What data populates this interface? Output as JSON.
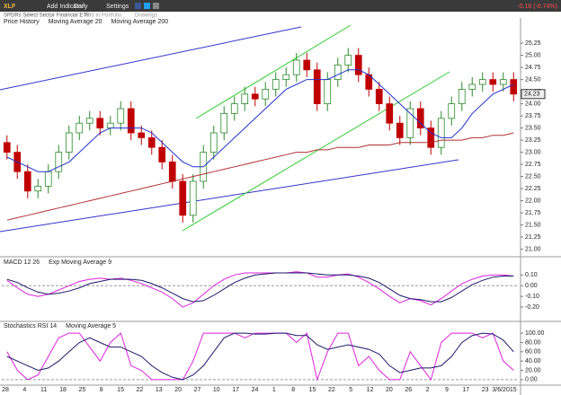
{
  "toolbar": {
    "symbol": "XLF",
    "add_indicator": "Add Indicator",
    "period": "Daily",
    "settings": "Settings",
    "change": "-0.18 (-0.74%)",
    "subtitle": "SPDRs Select Sector Financial ETF",
    "add_portfolio": "Add to Portfolio",
    "drawings": "Drawings"
  },
  "x_labels": [
    "28",
    "4",
    "11",
    "18",
    "25",
    "8",
    "15",
    "22",
    "13",
    "20",
    "27",
    "10",
    "17",
    "24",
    "1",
    "8",
    "15",
    "22",
    "5",
    "12",
    "20",
    "26",
    "2",
    "9",
    "17",
    "23",
    "3/6/2015"
  ],
  "chart_data": [
    {
      "type": "candlestick",
      "name": "Price History",
      "up_color": "#2a8a2a",
      "down_color": "#c00000",
      "last_label": "24.23",
      "open": [
        23.2,
        23.0,
        22.6,
        22.2,
        22.3,
        22.6,
        23.0,
        23.4,
        23.6,
        23.7,
        23.5,
        23.6,
        23.9,
        23.4,
        23.3,
        23.1,
        22.8,
        22.4,
        21.7,
        22.4,
        23.0,
        23.4,
        23.8,
        24.0,
        24.2,
        24.1,
        24.3,
        24.5,
        24.6,
        24.9,
        24.7,
        24.0,
        24.5,
        24.8,
        25.0,
        24.6,
        24.3,
        24.0,
        23.6,
        23.3,
        23.9,
        23.5,
        23.1,
        23.7,
        24.0,
        24.3,
        24.4,
        24.5,
        24.4,
        24.5
      ],
      "high": [
        23.35,
        23.15,
        22.75,
        22.45,
        22.75,
        23.15,
        23.55,
        23.75,
        23.85,
        23.85,
        23.75,
        24.05,
        24.05,
        23.55,
        23.45,
        23.25,
        22.95,
        22.55,
        22.55,
        23.15,
        23.55,
        23.95,
        24.15,
        24.35,
        24.35,
        24.45,
        24.65,
        24.75,
        25.05,
        25.05,
        24.85,
        24.65,
        24.95,
        25.15,
        25.15,
        24.75,
        24.45,
        24.15,
        23.75,
        24.05,
        24.05,
        23.65,
        23.85,
        24.15,
        24.45,
        24.55,
        24.65,
        24.65,
        24.65,
        24.65
      ],
      "low": [
        22.85,
        22.45,
        22.05,
        22.05,
        22.15,
        22.45,
        22.85,
        23.25,
        23.45,
        23.35,
        23.35,
        23.45,
        23.25,
        23.15,
        22.95,
        22.65,
        22.25,
        21.55,
        21.55,
        22.25,
        22.85,
        23.25,
        23.65,
        23.85,
        23.95,
        23.95,
        24.15,
        24.35,
        24.45,
        24.55,
        23.85,
        23.85,
        24.35,
        24.65,
        24.45,
        24.15,
        23.85,
        23.45,
        23.15,
        23.15,
        23.35,
        22.95,
        22.95,
        23.55,
        23.85,
        24.15,
        24.25,
        24.25,
        24.25,
        24.05
      ],
      "close": [
        23.0,
        22.6,
        22.2,
        22.3,
        22.6,
        23.0,
        23.4,
        23.6,
        23.7,
        23.5,
        23.6,
        23.9,
        23.4,
        23.3,
        23.1,
        22.8,
        22.4,
        21.7,
        22.4,
        23.0,
        23.4,
        23.8,
        24.0,
        24.2,
        24.1,
        24.3,
        24.5,
        24.6,
        24.9,
        24.7,
        24.0,
        24.5,
        24.8,
        25.0,
        24.6,
        24.3,
        24.0,
        23.6,
        23.3,
        23.9,
        23.5,
        23.1,
        23.7,
        24.0,
        24.3,
        24.4,
        24.5,
        24.4,
        24.5,
        24.2
      ],
      "series": [
        {
          "name": "Moving Average 20",
          "color": "#2233cc",
          "values": [
            22.9,
            22.8,
            22.7,
            22.6,
            22.6,
            22.7,
            22.8,
            23.0,
            23.2,
            23.4,
            23.5,
            23.5,
            23.5,
            23.5,
            23.4,
            23.2,
            23.0,
            22.8,
            22.7,
            22.7,
            22.9,
            23.1,
            23.3,
            23.5,
            23.7,
            23.9,
            24.1,
            24.3,
            24.4,
            24.5,
            24.5,
            24.5,
            24.6,
            24.7,
            24.7,
            24.6,
            24.4,
            24.2,
            24.0,
            23.8,
            23.6,
            23.4,
            23.3,
            23.3,
            23.5,
            23.8,
            24.0,
            24.2,
            24.3,
            24.4
          ]
        },
        {
          "name": "Moving Average 200",
          "color": "#b03030",
          "values": [
            21.6,
            21.65,
            21.7,
            21.75,
            21.8,
            21.85,
            21.9,
            21.95,
            22.0,
            22.05,
            22.1,
            22.15,
            22.2,
            22.25,
            22.3,
            22.35,
            22.4,
            22.45,
            22.5,
            22.55,
            22.6,
            22.65,
            22.7,
            22.75,
            22.8,
            22.85,
            22.9,
            22.95,
            23.0,
            23.0,
            23.05,
            23.05,
            23.1,
            23.1,
            23.1,
            23.15,
            23.15,
            23.15,
            23.2,
            23.2,
            23.2,
            23.2,
            23.25,
            23.25,
            23.25,
            23.3,
            23.3,
            23.35,
            23.35,
            23.4
          ]
        }
      ],
      "ylim": [
        20.9,
        25.4
      ],
      "yticks": [
        {
          "value": 21.0,
          "label": "21.00"
        },
        {
          "value": 21.25,
          "label": "21.25"
        },
        {
          "value": 21.5,
          "label": "21.50"
        },
        {
          "value": 21.75,
          "label": "21.75"
        },
        {
          "value": 22.0,
          "label": "22.00"
        },
        {
          "value": 22.25,
          "label": "22.25"
        },
        {
          "value": 22.5,
          "label": "22.50"
        },
        {
          "value": 22.75,
          "label": "22.75"
        },
        {
          "value": 23.0,
          "label": "23.00"
        },
        {
          "value": 23.25,
          "label": "23.25"
        },
        {
          "value": 23.5,
          "label": "23.50"
        },
        {
          "value": 23.75,
          "label": "23.75"
        },
        {
          "value": 24.0,
          "label": "24.00"
        },
        {
          "value": 24.25,
          "label": "24.25"
        },
        {
          "value": 24.5,
          "label": "24.50"
        },
        {
          "value": 24.75,
          "label": "24.75"
        },
        {
          "value": 25.0,
          "label": "25.00"
        },
        {
          "value": 25.25,
          "label": "25.25"
        }
      ]
    },
    {
      "type": "line",
      "series": [
        {
          "name": "MACD 12 26",
          "color": "#dd22dd",
          "values": [
            0.05,
            -0.02,
            -0.08,
            -0.1,
            -0.08,
            -0.04,
            0.0,
            0.04,
            0.06,
            0.07,
            0.06,
            0.07,
            0.05,
            0.02,
            -0.02,
            -0.06,
            -0.12,
            -0.2,
            -0.16,
            -0.08,
            0.0,
            0.06,
            0.1,
            0.12,
            0.12,
            0.12,
            0.12,
            0.12,
            0.13,
            0.12,
            0.08,
            0.08,
            0.1,
            0.11,
            0.08,
            0.03,
            -0.03,
            -0.1,
            -0.16,
            -0.12,
            -0.14,
            -0.18,
            -0.12,
            -0.05,
            0.02,
            0.06,
            0.09,
            0.1,
            0.1,
            0.09
          ]
        },
        {
          "name": "Exp Moving Average 9",
          "color": "#1a1a6a",
          "values": [
            0.06,
            0.03,
            -0.02,
            -0.06,
            -0.08,
            -0.07,
            -0.05,
            -0.02,
            0.02,
            0.04,
            0.06,
            0.06,
            0.06,
            0.05,
            0.02,
            -0.02,
            -0.07,
            -0.12,
            -0.15,
            -0.14,
            -0.09,
            -0.03,
            0.03,
            0.07,
            0.1,
            0.11,
            0.12,
            0.12,
            0.12,
            0.12,
            0.11,
            0.1,
            0.1,
            0.1,
            0.09,
            0.07,
            0.03,
            -0.03,
            -0.09,
            -0.12,
            -0.13,
            -0.15,
            -0.15,
            -0.11,
            -0.05,
            0.01,
            0.05,
            0.08,
            0.09,
            0.09
          ]
        }
      ],
      "ylim": [
        -0.3,
        0.17
      ],
      "yticks": [
        {
          "value": 0.1,
          "label": "0.10"
        },
        {
          "value": 0,
          "label": "0.00"
        },
        {
          "value": -0.1,
          "label": "-0.10"
        },
        {
          "value": -0.2,
          "label": "-0.20"
        }
      ]
    },
    {
      "type": "line",
      "series": [
        {
          "name": "Stochastics RSI 14",
          "color": "#dd22dd",
          "values": [
            60,
            20,
            0,
            10,
            50,
            90,
            100,
            100,
            70,
            40,
            80,
            100,
            30,
            20,
            0,
            0,
            0,
            0,
            40,
            100,
            100,
            100,
            100,
            90,
            100,
            100,
            100,
            100,
            80,
            100,
            0,
            60,
            100,
            100,
            30,
            50,
            20,
            0,
            0,
            60,
            30,
            0,
            80,
            100,
            100,
            100,
            90,
            100,
            40,
            20
          ]
        },
        {
          "name": "Moving Average 5",
          "color": "#1a1a6a",
          "values": [
            50,
            40,
            30,
            20,
            25,
            40,
            60,
            80,
            90,
            80,
            70,
            70,
            60,
            50,
            30,
            15,
            5,
            0,
            10,
            30,
            60,
            90,
            100,
            100,
            98,
            98,
            100,
            100,
            95,
            95,
            75,
            65,
            70,
            75,
            70,
            65,
            55,
            30,
            15,
            20,
            25,
            25,
            30,
            50,
            80,
            95,
            100,
            98,
            85,
            60
          ]
        }
      ],
      "ylim": [
        -6,
        106
      ],
      "yticks": [
        {
          "value": 100,
          "label": "100.00"
        },
        {
          "value": 80,
          "label": "80.00"
        },
        {
          "value": 60,
          "label": "60.00"
        },
        {
          "value": 40,
          "label": "40.00"
        },
        {
          "value": 20,
          "label": "20.00"
        },
        {
          "value": 0,
          "label": "0.00"
        }
      ]
    }
  ]
}
